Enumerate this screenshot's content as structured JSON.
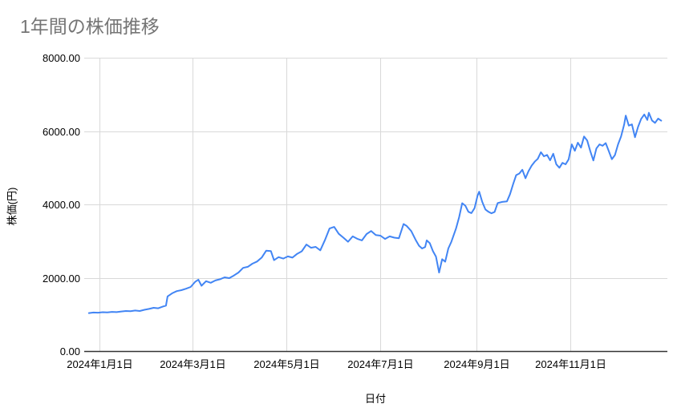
{
  "page": {
    "background": "#ffffff"
  },
  "chart_data": {
    "type": "line",
    "title": "1年間の株価推移",
    "xlabel": "日付",
    "ylabel": "株価(円)",
    "legend": "none",
    "grid": true,
    "ylim": [
      0,
      8000
    ],
    "y_ticks": [
      {
        "value": 0,
        "label": "0.00"
      },
      {
        "value": 2000,
        "label": "2000.00"
      },
      {
        "value": 4000,
        "label": "4000.00"
      },
      {
        "value": 6000,
        "label": "6000.00"
      },
      {
        "value": 8000,
        "label": "8000.00"
      }
    ],
    "x_axis_domain": [
      "2023-12-22",
      "2025-01-03"
    ],
    "x_ticks": [
      {
        "date": "2024-01-01",
        "label": "2024年1月1日"
      },
      {
        "date": "2024-03-01",
        "label": "2024年3月1日"
      },
      {
        "date": "2024-05-01",
        "label": "2024年5月1日"
      },
      {
        "date": "2024-07-01",
        "label": "2024年7月1日"
      },
      {
        "date": "2024-09-01",
        "label": "2024年9月1日"
      },
      {
        "date": "2024-11-01",
        "label": "2024年11月1日"
      }
    ],
    "colors": {
      "line": "#4285f4",
      "title_text": "#757575",
      "axis_text": "#000000",
      "gridline": "#d9d9d9",
      "axis_line": "#333333"
    },
    "series": [
      {
        "color": "#4285f4",
        "points": [
          [
            "2023-12-25",
            1035
          ],
          [
            "2023-12-28",
            1052
          ],
          [
            "2023-12-31",
            1048
          ],
          [
            "2024-01-03",
            1060
          ],
          [
            "2024-01-06",
            1055
          ],
          [
            "2024-01-09",
            1068
          ],
          [
            "2024-01-12",
            1062
          ],
          [
            "2024-01-15",
            1080
          ],
          [
            "2024-01-18",
            1092
          ],
          [
            "2024-01-21",
            1088
          ],
          [
            "2024-01-24",
            1105
          ],
          [
            "2024-01-27",
            1092
          ],
          [
            "2024-01-30",
            1125
          ],
          [
            "2024-02-02",
            1150
          ],
          [
            "2024-02-05",
            1180
          ],
          [
            "2024-02-08",
            1168
          ],
          [
            "2024-02-11",
            1215
          ],
          [
            "2024-02-13",
            1240
          ],
          [
            "2024-02-14",
            1490
          ],
          [
            "2024-02-17",
            1575
          ],
          [
            "2024-02-20",
            1635
          ],
          [
            "2024-02-23",
            1662
          ],
          [
            "2024-02-26",
            1700
          ],
          [
            "2024-02-29",
            1748
          ],
          [
            "2024-03-03",
            1892
          ],
          [
            "2024-03-05",
            1948
          ],
          [
            "2024-03-07",
            1782
          ],
          [
            "2024-03-10",
            1905
          ],
          [
            "2024-03-13",
            1862
          ],
          [
            "2024-03-16",
            1925
          ],
          [
            "2024-03-19",
            1958
          ],
          [
            "2024-03-22",
            2012
          ],
          [
            "2024-03-25",
            1988
          ],
          [
            "2024-03-28",
            2062
          ],
          [
            "2024-03-31",
            2142
          ],
          [
            "2024-04-03",
            2268
          ],
          [
            "2024-04-06",
            2298
          ],
          [
            "2024-04-09",
            2382
          ],
          [
            "2024-04-12",
            2442
          ],
          [
            "2024-04-15",
            2548
          ],
          [
            "2024-04-18",
            2738
          ],
          [
            "2024-04-21",
            2728
          ],
          [
            "2024-04-23",
            2478
          ],
          [
            "2024-04-26",
            2562
          ],
          [
            "2024-04-29",
            2522
          ],
          [
            "2024-05-02",
            2582
          ],
          [
            "2024-05-05",
            2548
          ],
          [
            "2024-05-08",
            2652
          ],
          [
            "2024-05-11",
            2722
          ],
          [
            "2024-05-14",
            2905
          ],
          [
            "2024-05-17",
            2818
          ],
          [
            "2024-05-20",
            2842
          ],
          [
            "2024-05-23",
            2748
          ],
          [
            "2024-05-26",
            3022
          ],
          [
            "2024-05-29",
            3342
          ],
          [
            "2024-06-01",
            3385
          ],
          [
            "2024-06-04",
            3198
          ],
          [
            "2024-06-07",
            3092
          ],
          [
            "2024-06-10",
            2982
          ],
          [
            "2024-06-13",
            3128
          ],
          [
            "2024-06-16",
            3062
          ],
          [
            "2024-06-19",
            3018
          ],
          [
            "2024-06-22",
            3192
          ],
          [
            "2024-06-25",
            3275
          ],
          [
            "2024-06-28",
            3162
          ],
          [
            "2024-07-01",
            3148
          ],
          [
            "2024-07-04",
            3058
          ],
          [
            "2024-07-07",
            3128
          ],
          [
            "2024-07-10",
            3092
          ],
          [
            "2024-07-13",
            3078
          ],
          [
            "2024-07-16",
            3465
          ],
          [
            "2024-07-18",
            3412
          ],
          [
            "2024-07-21",
            3272
          ],
          [
            "2024-07-24",
            3018
          ],
          [
            "2024-07-26",
            2872
          ],
          [
            "2024-07-28",
            2798
          ],
          [
            "2024-07-30",
            2838
          ],
          [
            "2024-07-31",
            3018
          ],
          [
            "2024-08-02",
            2942
          ],
          [
            "2024-08-04",
            2725
          ],
          [
            "2024-08-06",
            2578
          ],
          [
            "2024-08-08",
            2142
          ],
          [
            "2024-08-10",
            2505
          ],
          [
            "2024-08-12",
            2438
          ],
          [
            "2024-08-14",
            2798
          ],
          [
            "2024-08-16",
            2982
          ],
          [
            "2024-08-19",
            3342
          ],
          [
            "2024-08-21",
            3652
          ],
          [
            "2024-08-23",
            4032
          ],
          [
            "2024-08-25",
            3965
          ],
          [
            "2024-08-27",
            3798
          ],
          [
            "2024-08-29",
            3762
          ],
          [
            "2024-08-31",
            3898
          ],
          [
            "2024-09-02",
            4242
          ],
          [
            "2024-09-03",
            4345
          ],
          [
            "2024-09-05",
            4068
          ],
          [
            "2024-09-07",
            3862
          ],
          [
            "2024-09-09",
            3798
          ],
          [
            "2024-09-11",
            3758
          ],
          [
            "2024-09-13",
            3795
          ],
          [
            "2024-09-15",
            4035
          ],
          [
            "2024-09-18",
            4068
          ],
          [
            "2024-09-21",
            4082
          ],
          [
            "2024-09-23",
            4278
          ],
          [
            "2024-09-25",
            4552
          ],
          [
            "2024-09-27",
            4798
          ],
          [
            "2024-09-29",
            4842
          ],
          [
            "2024-10-01",
            4945
          ],
          [
            "2024-10-03",
            4712
          ],
          [
            "2024-10-05",
            4908
          ],
          [
            "2024-10-07",
            5058
          ],
          [
            "2024-10-09",
            5165
          ],
          [
            "2024-10-11",
            5242
          ],
          [
            "2024-10-13",
            5422
          ],
          [
            "2024-10-15",
            5312
          ],
          [
            "2024-10-17",
            5348
          ],
          [
            "2024-10-19",
            5202
          ],
          [
            "2024-10-21",
            5382
          ],
          [
            "2024-10-23",
            5095
          ],
          [
            "2024-10-25",
            4998
          ],
          [
            "2024-10-27",
            5132
          ],
          [
            "2024-10-29",
            5092
          ],
          [
            "2024-10-31",
            5228
          ],
          [
            "2024-11-02",
            5638
          ],
          [
            "2024-11-04",
            5462
          ],
          [
            "2024-11-06",
            5682
          ],
          [
            "2024-11-08",
            5548
          ],
          [
            "2024-11-10",
            5852
          ],
          [
            "2024-11-12",
            5745
          ],
          [
            "2024-11-14",
            5458
          ],
          [
            "2024-11-16",
            5198
          ],
          [
            "2024-11-18",
            5525
          ],
          [
            "2024-11-20",
            5638
          ],
          [
            "2024-11-22",
            5598
          ],
          [
            "2024-11-24",
            5672
          ],
          [
            "2024-11-26",
            5455
          ],
          [
            "2024-11-28",
            5232
          ],
          [
            "2024-11-30",
            5345
          ],
          [
            "2024-12-02",
            5638
          ],
          [
            "2024-12-04",
            5855
          ],
          [
            "2024-12-06",
            6178
          ],
          [
            "2024-12-07",
            6422
          ],
          [
            "2024-12-09",
            6148
          ],
          [
            "2024-12-11",
            6182
          ],
          [
            "2024-12-13",
            5832
          ],
          [
            "2024-12-15",
            6118
          ],
          [
            "2024-12-17",
            6332
          ],
          [
            "2024-12-19",
            6452
          ],
          [
            "2024-12-21",
            6302
          ],
          [
            "2024-12-22",
            6498
          ],
          [
            "2024-12-24",
            6288
          ],
          [
            "2024-12-26",
            6222
          ],
          [
            "2024-12-28",
            6342
          ],
          [
            "2024-12-30",
            6282
          ]
        ]
      }
    ]
  }
}
